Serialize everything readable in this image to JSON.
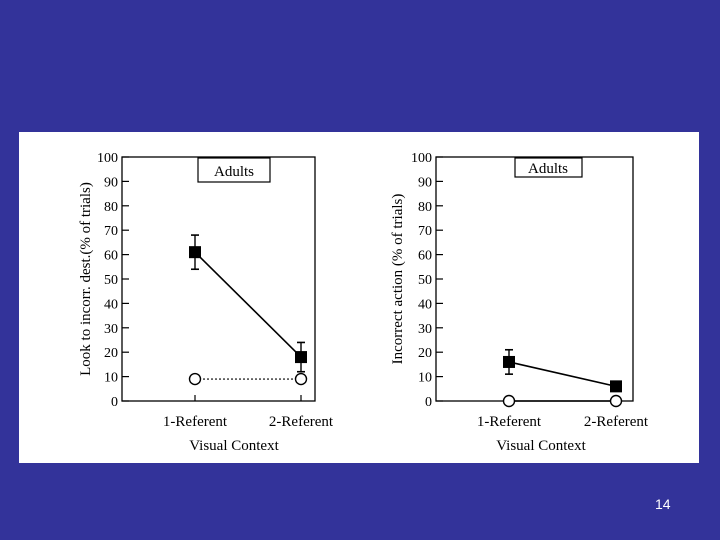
{
  "slide": {
    "number": "14"
  },
  "chart_data": [
    {
      "type": "line",
      "title": "Adults",
      "xlabel": "Visual Context",
      "ylabel": "Look to incorr. dest.(% of trials)",
      "categories": [
        "1-Referent",
        "2-Referent"
      ],
      "ylim": [
        0,
        100
      ],
      "yticks": [
        "0",
        "10",
        "20",
        "30",
        "40",
        "50",
        "60",
        "70",
        "80",
        "90",
        "100"
      ],
      "series": [
        {
          "name": "filled-square",
          "marker": "square",
          "line": "solid",
          "values": [
            61,
            18
          ],
          "errors": [
            7,
            6
          ]
        },
        {
          "name": "open-circle",
          "marker": "circle",
          "line": "dotted",
          "values": [
            9,
            9
          ],
          "errors": [
            0,
            0
          ]
        }
      ]
    },
    {
      "type": "line",
      "title": "Adults",
      "xlabel": "Visual Context",
      "ylabel": "Incorrect action (% of trials)",
      "categories": [
        "1-Referent",
        "2-Referent"
      ],
      "ylim": [
        0,
        100
      ],
      "yticks": [
        "0",
        "10",
        "20",
        "30",
        "40",
        "50",
        "60",
        "70",
        "80",
        "90",
        "100"
      ],
      "series": [
        {
          "name": "filled-square",
          "marker": "square",
          "line": "solid",
          "values": [
            16,
            6
          ],
          "errors": [
            5,
            0
          ]
        },
        {
          "name": "open-circle",
          "marker": "circle",
          "line": "solid",
          "values": [
            0,
            0
          ],
          "errors": [
            0,
            0
          ]
        }
      ]
    }
  ]
}
